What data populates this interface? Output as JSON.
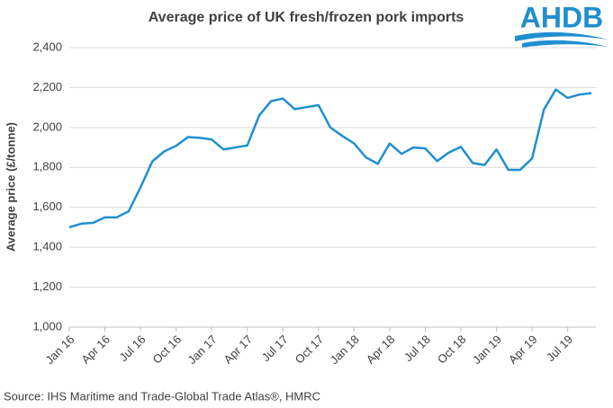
{
  "chart_data": {
    "type": "line",
    "title": "Average price of UK fresh/frozen pork imports",
    "y_label": "Average price (£/tonne)",
    "source": "Source: IHS Maritime and Trade-Global Trade Atlas®, HMRC",
    "logo": "AHDB",
    "categories": [
      "Jan 16",
      null,
      null,
      "Apr 16",
      null,
      null,
      "Jul 16",
      null,
      null,
      "Oct 16",
      null,
      null,
      "Jan 17",
      null,
      null,
      "Apr 17",
      null,
      null,
      "Jul 17",
      null,
      null,
      "Oct 17",
      null,
      null,
      "Jan 18",
      null,
      null,
      "Apr 18",
      null,
      null,
      "Jul 18",
      null,
      null,
      "Oct 18",
      null,
      null,
      "Jan 19",
      null,
      null,
      "Apr 19",
      null,
      null,
      "Jul 19",
      null,
      null
    ],
    "series": [
      {
        "name": "Average price",
        "color": "#1f8fd0",
        "values": [
          1500,
          1518,
          1522,
          1550,
          1550,
          1580,
          1700,
          1830,
          1880,
          1908,
          1952,
          1948,
          1940,
          1890,
          1900,
          1910,
          2060,
          2132,
          2145,
          2092,
          2102,
          2112,
          2000,
          1958,
          1920,
          1850,
          1818,
          1920,
          1868,
          1900,
          1895,
          1832,
          1875,
          1903,
          1822,
          1812,
          1890,
          1788,
          1788,
          1845,
          2090,
          2190,
          2148,
          2165,
          2172
        ]
      }
    ],
    "ylim": [
      1000,
      2400
    ],
    "yticks": [
      {
        "value": 1000,
        "label": "1,000"
      },
      {
        "value": 1200,
        "label": "1,200"
      },
      {
        "value": 1400,
        "label": "1,400"
      },
      {
        "value": 1600,
        "label": "1,600"
      },
      {
        "value": 1800,
        "label": "1,800"
      },
      {
        "value": 2000,
        "label": "2,000"
      },
      {
        "value": 2200,
        "label": "2,200"
      },
      {
        "value": 2400,
        "label": "2,400"
      }
    ],
    "grid": true
  }
}
